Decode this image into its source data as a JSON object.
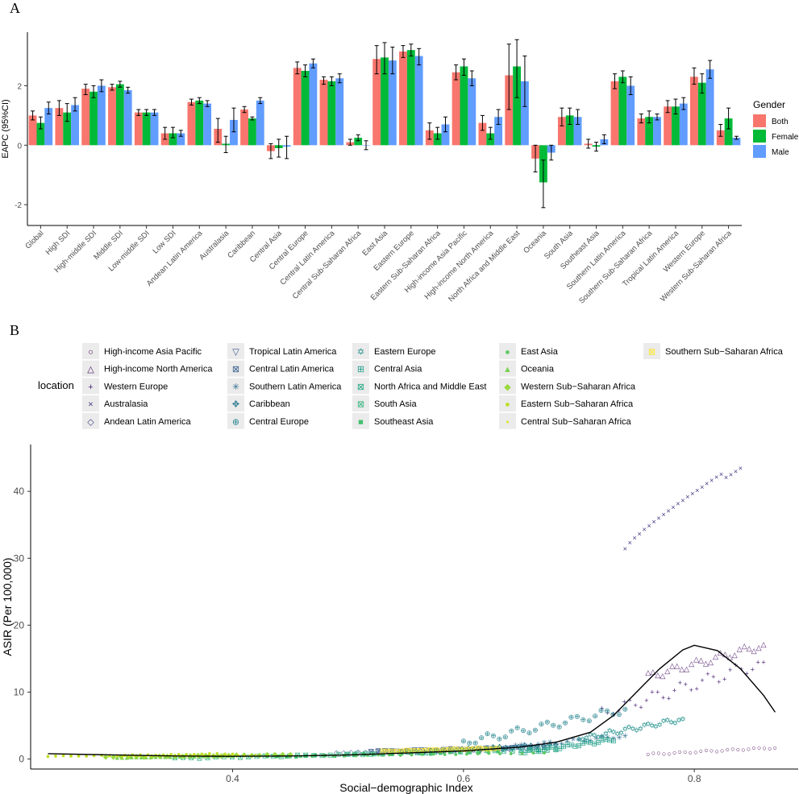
{
  "chart_data": [
    {
      "panel": "A",
      "type": "bar",
      "ylabel": "EAPC (95%CI)",
      "xlabel": "",
      "ylim": [
        -2.7,
        3.8
      ],
      "yticks": [
        -2,
        0,
        2
      ],
      "legend_title": "Gender",
      "legend_position": "right",
      "categories": [
        "Global",
        "High SDI",
        "High-middle SDI",
        "Middle SDI",
        "Low-middle SDI",
        "Low SDI",
        "Andean Latin America",
        "Australasia",
        "Caribbean",
        "Central Asia",
        "Central Europe",
        "Central Latin America",
        "Central Sub-Saharan Africa",
        "East Asia",
        "Eastern Europe",
        "Eastern Sub-Saharan Africa",
        "High-income Asia Pacific",
        "High-income North America",
        "North Africa and Middle East",
        "Oceania",
        "South Asia",
        "Southeast Asia",
        "Southern Latin America",
        "Southern Sub-Saharan Africa",
        "Tropical Latin America",
        "Western Europe",
        "Western Sub-Saharan Africa"
      ],
      "series": [
        {
          "name": "Both",
          "color": "#F8766D",
          "values": [
            1.0,
            1.25,
            1.9,
            1.95,
            1.1,
            0.4,
            1.45,
            0.55,
            1.2,
            -0.2,
            2.6,
            2.2,
            0.1,
            2.9,
            3.15,
            0.5,
            2.45,
            0.75,
            2.35,
            -0.45,
            0.95,
            0.05,
            2.15,
            0.9,
            1.3,
            2.3,
            0.5
          ],
          "lower": [
            0.85,
            1.0,
            1.7,
            1.85,
            1.0,
            0.2,
            1.35,
            0.1,
            1.1,
            -0.45,
            2.4,
            2.05,
            0.0,
            2.4,
            2.95,
            0.2,
            2.2,
            0.5,
            1.2,
            -0.9,
            0.65,
            -0.1,
            1.9,
            0.75,
            1.1,
            2.05,
            0.3
          ],
          "upper": [
            1.15,
            1.5,
            2.05,
            2.05,
            1.2,
            0.6,
            1.55,
            0.9,
            1.3,
            0.05,
            2.8,
            2.3,
            0.2,
            3.35,
            3.35,
            0.75,
            2.7,
            1.0,
            3.4,
            0.0,
            1.25,
            0.2,
            2.4,
            1.05,
            1.5,
            2.6,
            0.7
          ]
        },
        {
          "name": "Female",
          "color": "#00BA38",
          "values": [
            0.75,
            1.1,
            1.8,
            2.05,
            1.1,
            0.4,
            1.5,
            0.05,
            0.9,
            -0.1,
            2.5,
            2.15,
            0.25,
            2.95,
            3.2,
            0.4,
            2.65,
            0.4,
            2.65,
            -1.25,
            1.0,
            -0.05,
            2.3,
            0.95,
            1.3,
            2.1,
            0.9
          ],
          "lower": [
            0.55,
            0.8,
            1.6,
            1.95,
            1.0,
            0.25,
            1.4,
            -0.25,
            0.85,
            -0.4,
            2.3,
            2.0,
            0.15,
            2.4,
            3.0,
            0.2,
            2.35,
            0.2,
            1.6,
            -2.1,
            0.7,
            -0.2,
            2.1,
            0.75,
            1.05,
            1.75,
            0.55
          ],
          "upper": [
            0.95,
            1.4,
            2.0,
            2.15,
            1.2,
            0.6,
            1.6,
            0.3,
            0.95,
            0.2,
            2.7,
            2.3,
            0.35,
            3.45,
            3.4,
            0.6,
            2.9,
            0.6,
            3.55,
            -0.5,
            1.25,
            0.1,
            2.5,
            1.15,
            1.55,
            2.4,
            1.25
          ]
        },
        {
          "name": "Male",
          "color": "#619CFF",
          "values": [
            1.25,
            1.35,
            2.0,
            1.85,
            1.1,
            0.4,
            1.4,
            0.85,
            1.5,
            -0.05,
            2.75,
            2.25,
            0.0,
            2.85,
            3.0,
            0.7,
            2.25,
            0.95,
            2.15,
            -0.25,
            0.95,
            0.2,
            2.0,
            0.95,
            1.4,
            2.55,
            0.25
          ],
          "lower": [
            1.05,
            1.15,
            1.8,
            1.75,
            1.0,
            0.3,
            1.3,
            0.45,
            1.4,
            -0.45,
            2.6,
            2.1,
            -0.15,
            2.4,
            2.7,
            0.45,
            2.0,
            0.7,
            1.3,
            -0.5,
            0.7,
            0.05,
            1.7,
            0.85,
            1.2,
            2.25,
            0.2
          ],
          "upper": [
            1.45,
            1.6,
            2.2,
            1.95,
            1.2,
            0.5,
            1.5,
            1.25,
            1.6,
            0.3,
            2.9,
            2.4,
            0.15,
            3.3,
            3.25,
            0.95,
            2.5,
            1.2,
            3.0,
            0.0,
            1.2,
            0.35,
            2.3,
            1.05,
            1.6,
            2.85,
            0.3
          ]
        }
      ]
    },
    {
      "panel": "B",
      "type": "scatter",
      "xlabel": "Social−demographic Index",
      "ylabel": "ASIR (Per 100,000)",
      "xlim": [
        0.225,
        0.89
      ],
      "ylim": [
        -1.5,
        47
      ],
      "xticks": [
        0.4,
        0.6,
        0.8
      ],
      "xtick_labels": [
        "0.4",
        "0.6",
        "0.8"
      ],
      "yticks": [
        0,
        10,
        20,
        30,
        40
      ],
      "legend_title": "location",
      "legend_position": "top",
      "legend": [
        {
          "label": "High-income Asia Pacific",
          "color": "#440154",
          "symbol": "○"
        },
        {
          "label": "High-income North America",
          "color": "#471365",
          "symbol": "△"
        },
        {
          "label": "Western Europe",
          "color": "#482475",
          "symbol": "+"
        },
        {
          "label": "Australasia",
          "color": "#463480",
          "symbol": "×"
        },
        {
          "label": "Andean Latin America",
          "color": "#414487",
          "symbol": "◇"
        },
        {
          "label": "Tropical Latin America",
          "color": "#3B528B",
          "symbol": "▽"
        },
        {
          "label": "Central Latin America",
          "color": "#355F8D",
          "symbol": "⊠"
        },
        {
          "label": "Southern Latin America",
          "color": "#2F6C8E",
          "symbol": "✳"
        },
        {
          "label": "Caribbean",
          "color": "#2A788E",
          "symbol": "✥"
        },
        {
          "label": "Central Europe",
          "color": "#25848E",
          "symbol": "⊕"
        },
        {
          "label": "Eastern Europe",
          "color": "#21918C",
          "symbol": "✡"
        },
        {
          "label": "Central Asia",
          "color": "#1F9E89",
          "symbol": "⊞"
        },
        {
          "label": "North Africa and Middle East",
          "color": "#22A884",
          "symbol": "⊠"
        },
        {
          "label": "South Asia",
          "color": "#2FB47C",
          "symbol": "⊠"
        },
        {
          "label": "Southeast Asia",
          "color": "#44BF70",
          "symbol": "■"
        },
        {
          "label": "East Asia",
          "color": "#5EC962",
          "symbol": "●"
        },
        {
          "label": "Oceania",
          "color": "#7AD151",
          "symbol": "▲"
        },
        {
          "label": "Western Sub−Saharan Africa",
          "color": "#9BD93C",
          "symbol": "◆"
        },
        {
          "label": "Eastern Sub−Saharan Africa",
          "color": "#BDDF26",
          "symbol": "●"
        },
        {
          "label": "Central Sub−Saharan Africa",
          "color": "#DFE318",
          "symbol": "•"
        },
        {
          "label": "Southern Sub−Saharan Africa",
          "color": "#FDE725",
          "symbol": "⊠"
        }
      ],
      "series": [
        {
          "name": "High-income Asia Pacific",
          "x_range": [
            0.76,
            0.87
          ],
          "y_range": [
            0.8,
            1.8
          ],
          "n": 25
        },
        {
          "name": "High-income North America",
          "x_range": [
            0.76,
            0.86
          ],
          "y_range": [
            12.5,
            17.2
          ],
          "n": 25
        },
        {
          "name": "Western Europe",
          "x_range": [
            0.72,
            0.86
          ],
          "y_range": [
            6.8,
            14.5
          ],
          "n": 30
        },
        {
          "name": "Australasia",
          "x_range": [
            0.74,
            0.84
          ],
          "y_range": [
            31.5,
            44.5
          ],
          "n": 25
        },
        {
          "name": "Andean Latin America",
          "x_range": [
            0.49,
            0.64
          ],
          "y_range": [
            1.0,
            1.6
          ],
          "n": 25
        },
        {
          "name": "Tropical Latin America",
          "x_range": [
            0.52,
            0.66
          ],
          "y_range": [
            1.2,
            1.8
          ],
          "n": 25
        },
        {
          "name": "Central Latin America",
          "x_range": [
            0.52,
            0.67
          ],
          "y_range": [
            1.2,
            1.9
          ],
          "n": 25
        },
        {
          "name": "Southern Latin America",
          "x_range": [
            0.62,
            0.74
          ],
          "y_range": [
            1.5,
            3.5
          ],
          "n": 25
        },
        {
          "name": "Caribbean",
          "x_range": [
            0.55,
            0.68
          ],
          "y_range": [
            1.0,
            2.2
          ],
          "n": 25
        },
        {
          "name": "Central Europe",
          "x_range": [
            0.6,
            0.74
          ],
          "y_range": [
            2.5,
            7.5
          ],
          "n": 28
        },
        {
          "name": "Eastern Europe",
          "x_range": [
            0.7,
            0.79
          ],
          "y_range": [
            3.0,
            6.0
          ],
          "n": 28
        },
        {
          "name": "Central Asia",
          "x_range": [
            0.65,
            0.73
          ],
          "y_range": [
            1.0,
            3.0
          ],
          "n": 25
        },
        {
          "name": "North Africa and Middle East",
          "x_range": [
            0.5,
            0.68
          ],
          "y_range": [
            0.8,
            1.5
          ],
          "n": 25
        },
        {
          "name": "South Asia",
          "x_range": [
            0.35,
            0.52
          ],
          "y_range": [
            0.2,
            0.8
          ],
          "n": 25
        },
        {
          "name": "Southeast Asia",
          "x_range": [
            0.43,
            0.63
          ],
          "y_range": [
            0.4,
            1.2
          ],
          "n": 25
        },
        {
          "name": "East Asia",
          "x_range": [
            0.44,
            0.67
          ],
          "y_range": [
            0.5,
            1.0
          ],
          "n": 25
        },
        {
          "name": "Oceania",
          "x_range": [
            0.3,
            0.4
          ],
          "y_range": [
            0.3,
            0.6
          ],
          "n": 25
        },
        {
          "name": "Western Sub−Saharan Africa",
          "x_range": [
            0.29,
            0.45
          ],
          "y_range": [
            0.4,
            0.8
          ],
          "n": 25
        },
        {
          "name": "Eastern Sub−Saharan Africa",
          "x_range": [
            0.24,
            0.4
          ],
          "y_range": [
            0.5,
            0.9
          ],
          "n": 25
        },
        {
          "name": "Central Sub−Saharan Africa",
          "x_range": [
            0.3,
            0.42
          ],
          "y_range": [
            0.4,
            0.6
          ],
          "n": 25
        },
        {
          "name": "Southern Sub−Saharan Africa",
          "x_range": [
            0.53,
            0.63
          ],
          "y_range": [
            1.2,
            1.7
          ],
          "n": 25
        }
      ],
      "trend_line": {
        "x": [
          0.24,
          0.3,
          0.35,
          0.4,
          0.45,
          0.5,
          0.55,
          0.6,
          0.65,
          0.68,
          0.71,
          0.73,
          0.75,
          0.77,
          0.79,
          0.8,
          0.82,
          0.84,
          0.86,
          0.87
        ],
        "y": [
          0.8,
          0.6,
          0.45,
          0.4,
          0.45,
          0.6,
          0.9,
          1.2,
          1.8,
          2.5,
          4,
          6.5,
          10,
          13.5,
          16.3,
          17,
          16.2,
          13.5,
          9.5,
          7
        ]
      }
    }
  ],
  "panel_labels": {
    "a": "A",
    "b": "B"
  }
}
